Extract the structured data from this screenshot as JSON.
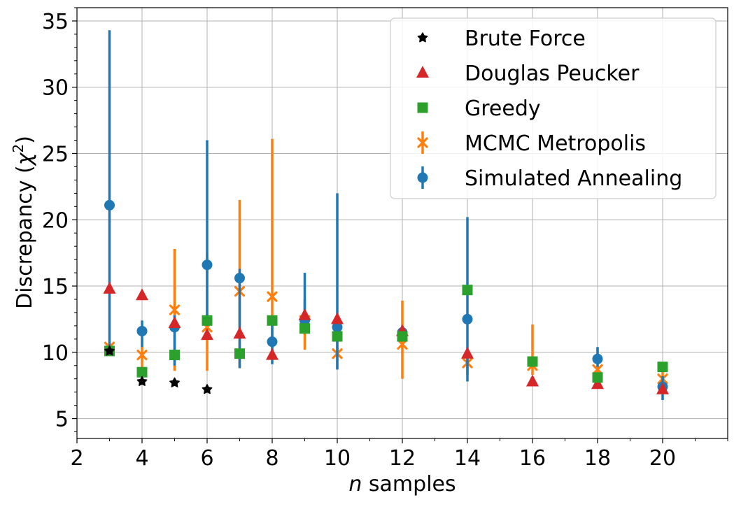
{
  "chart_data": {
    "type": "scatter",
    "xlabel_italic": "n",
    "xlabel_rest": " samples",
    "ylabel_main": "Discrepancy (",
    "ylabel_symbol": "χ",
    "ylabel_sup": "2",
    "ylabel_close": ")",
    "xlim": [
      2,
      22
    ],
    "ylim": [
      3.5,
      36
    ],
    "xticks": [
      2,
      4,
      6,
      8,
      10,
      12,
      14,
      16,
      18,
      20
    ],
    "yticks": [
      5,
      10,
      15,
      20,
      25,
      30,
      35
    ],
    "grid": true,
    "legend_placement": "top-right",
    "series": [
      {
        "name": "Brute Force",
        "marker": "star",
        "color": "#000000",
        "points": [
          {
            "x": 3,
            "y": 10.1
          },
          {
            "x": 4,
            "y": 7.8
          },
          {
            "x": 5,
            "y": 7.7
          },
          {
            "x": 6,
            "y": 7.2
          }
        ]
      },
      {
        "name": "Douglas Peucker",
        "marker": "triangle",
        "color": "#d62728",
        "points": [
          {
            "x": 3,
            "y": 14.8
          },
          {
            "x": 4,
            "y": 14.3
          },
          {
            "x": 5,
            "y": 12.2
          },
          {
            "x": 6,
            "y": 11.3
          },
          {
            "x": 7,
            "y": 11.4
          },
          {
            "x": 8,
            "y": 9.8
          },
          {
            "x": 9,
            "y": 12.8
          },
          {
            "x": 10,
            "y": 12.5
          },
          {
            "x": 12,
            "y": 11.6
          },
          {
            "x": 14,
            "y": 9.9
          },
          {
            "x": 16,
            "y": 7.8
          },
          {
            "x": 18,
            "y": 7.6
          },
          {
            "x": 20,
            "y": 7.2
          }
        ]
      },
      {
        "name": "Greedy",
        "marker": "square",
        "color": "#2ca02c",
        "points": [
          {
            "x": 3,
            "y": 10.1
          },
          {
            "x": 4,
            "y": 8.5
          },
          {
            "x": 5,
            "y": 9.8
          },
          {
            "x": 6,
            "y": 12.4
          },
          {
            "x": 7,
            "y": 9.9
          },
          {
            "x": 8,
            "y": 12.4
          },
          {
            "x": 9,
            "y": 11.8
          },
          {
            "x": 10,
            "y": 11.2
          },
          {
            "x": 12,
            "y": 11.2
          },
          {
            "x": 14,
            "y": 14.7
          },
          {
            "x": 16,
            "y": 9.3
          },
          {
            "x": 18,
            "y": 8.1
          },
          {
            "x": 20,
            "y": 8.9
          }
        ]
      },
      {
        "name": "MCMC Metropolis",
        "marker": "x",
        "color": "#ff7f0e",
        "points": [
          {
            "x": 3,
            "y": 10.4,
            "lo": 10.1,
            "hi": 10.7
          },
          {
            "x": 4,
            "y": 9.8,
            "lo": 8.5,
            "hi": 11.0
          },
          {
            "x": 5,
            "y": 13.2,
            "lo": 8.6,
            "hi": 17.8
          },
          {
            "x": 6,
            "y": 11.9,
            "lo": 8.6,
            "hi": 17.5
          },
          {
            "x": 7,
            "y": 14.6,
            "lo": 8.8,
            "hi": 21.5
          },
          {
            "x": 8,
            "y": 14.2,
            "lo": 9.5,
            "hi": 26.1
          },
          {
            "x": 9,
            "y": 12.4,
            "lo": 10.2,
            "hi": 14.0
          },
          {
            "x": 10,
            "y": 9.9,
            "lo": 8.8,
            "hi": 11.0
          },
          {
            "x": 12,
            "y": 10.6,
            "lo": 8.0,
            "hi": 13.9
          },
          {
            "x": 14,
            "y": 9.2,
            "lo": 8.3,
            "hi": 10.2
          },
          {
            "x": 16,
            "y": 9.0,
            "lo": 8.3,
            "hi": 12.1
          },
          {
            "x": 18,
            "y": 8.7,
            "lo": 8.0,
            "hi": 10.3
          },
          {
            "x": 20,
            "y": 8.0,
            "lo": 7.5,
            "hi": 8.6
          }
        ]
      },
      {
        "name": "Simulated Annealing",
        "marker": "circle",
        "color": "#1f77b4",
        "points": [
          {
            "x": 3,
            "y": 21.1,
            "lo": 10.5,
            "hi": 34.3
          },
          {
            "x": 4,
            "y": 11.6,
            "lo": 10.4,
            "hi": 12.4
          },
          {
            "x": 5,
            "y": 11.9,
            "lo": 9.0,
            "hi": 12.8
          },
          {
            "x": 6,
            "y": 16.6,
            "lo": 12.0,
            "hi": 26.0
          },
          {
            "x": 7,
            "y": 15.6,
            "lo": 8.8,
            "hi": 16.3
          },
          {
            "x": 8,
            "y": 10.8,
            "lo": 9.1,
            "hi": 12.5
          },
          {
            "x": 9,
            "y": 12.4,
            "lo": 11.5,
            "hi": 16.0
          },
          {
            "x": 10,
            "y": 11.9,
            "lo": 8.7,
            "hi": 22.0
          },
          {
            "x": 12,
            "y": 11.5,
            "lo": 11.0,
            "hi": 12.0
          },
          {
            "x": 14,
            "y": 12.5,
            "lo": 7.8,
            "hi": 20.2
          },
          {
            "x": 18,
            "y": 9.5,
            "lo": 8.9,
            "hi": 10.4
          },
          {
            "x": 20,
            "y": 7.4,
            "lo": 6.4,
            "hi": 8.2
          }
        ]
      }
    ]
  }
}
